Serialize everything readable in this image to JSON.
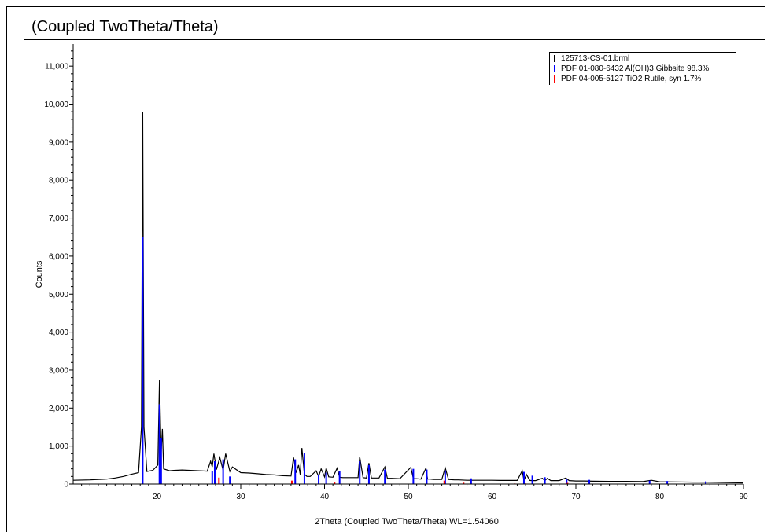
{
  "chart_data": {
    "type": "line",
    "title": "(Coupled TwoTheta/Theta)",
    "xlabel": "2Theta (Coupled TwoTheta/Theta) WL=1.54060",
    "ylabel": "Counts",
    "xlim": [
      10,
      90
    ],
    "ylim": [
      0,
      11500
    ],
    "x_ticks": [
      20,
      30,
      40,
      50,
      60,
      70,
      80,
      90
    ],
    "x_tick_labels": [
      "20",
      "30",
      "40",
      "50",
      "60",
      "70",
      "80",
      "90"
    ],
    "y_ticks": [
      0,
      1000,
      2000,
      3000,
      4000,
      5000,
      6000,
      7000,
      8000,
      9000,
      10000,
      11000
    ],
    "y_tick_labels": [
      "0",
      "1,000",
      "2,000",
      "3,000",
      "4,000",
      "5,000",
      "6,000",
      "7,000",
      "8,000",
      "9,000",
      "10,000",
      "11,000"
    ],
    "grid": false,
    "legend_position": "top-right",
    "series": [
      {
        "name": "125713-CS-01.brml",
        "color": "#000000",
        "style": "line",
        "x": [
          10,
          12,
          14,
          15,
          16,
          17,
          17.8,
          18.15,
          18.3,
          18.45,
          18.8,
          19.5,
          20.1,
          20.3,
          20.5,
          20.65,
          20.8,
          21.5,
          22,
          23,
          24,
          25,
          26,
          26.4,
          26.6,
          26.8,
          27.1,
          27.5,
          27.9,
          28.2,
          28.7,
          29,
          30,
          31,
          32,
          33,
          34,
          35,
          36,
          36.3,
          36.6,
          36.9,
          37.1,
          37.3,
          37.6,
          37.9,
          38.3,
          39,
          39.3,
          39.6,
          40,
          40.2,
          40.5,
          41,
          41.5,
          41.8,
          42.2,
          43,
          44,
          44.2,
          44.6,
          45,
          45.3,
          45.6,
          46,
          46.5,
          47.2,
          47.5,
          48,
          49,
          50.3,
          50.6,
          51,
          51.5,
          52.1,
          52.3,
          52.6,
          53,
          54,
          54.4,
          54.8,
          55.5,
          56,
          57,
          58,
          59,
          60,
          61,
          62,
          63,
          63.6,
          63.8,
          64.1,
          64.5,
          64.8,
          65.2,
          66,
          66.3,
          66.6,
          67,
          68,
          68.8,
          69.2,
          70,
          71,
          72,
          74,
          76,
          78,
          79,
          80,
          82,
          84,
          86,
          88,
          90
        ],
        "y": [
          100,
          110,
          130,
          160,
          200,
          260,
          300,
          1500,
          9800,
          1500,
          330,
          360,
          500,
          2750,
          800,
          1450,
          400,
          350,
          360,
          370,
          360,
          350,
          340,
          600,
          450,
          800,
          380,
          700,
          360,
          800,
          330,
          450,
          300,
          290,
          270,
          250,
          240,
          220,
          210,
          700,
          300,
          500,
          250,
          950,
          260,
          200,
          200,
          350,
          200,
          400,
          190,
          420,
          190,
          180,
          420,
          180,
          170,
          170,
          170,
          720,
          170,
          160,
          550,
          160,
          160,
          160,
          450,
          150,
          150,
          140,
          440,
          140,
          140,
          130,
          420,
          130,
          130,
          120,
          120,
          430,
          120,
          110,
          110,
          100,
          100,
          100,
          100,
          95,
          95,
          95,
          350,
          95,
          250,
          95,
          90,
          90,
          150,
          90,
          150,
          90,
          90,
          160,
          90,
          80,
          80,
          75,
          70,
          70,
          65,
          100,
          60,
          55,
          50,
          45,
          40,
          30
        ]
      },
      {
        "name": "PDF 01-080-6432 Al(OH)3 Gibbsite  98.3%",
        "color": "#0000ff",
        "style": "sticks",
        "x": [
          18.3,
          20.3,
          20.5,
          26.6,
          26.9,
          27.9,
          28.7,
          36.5,
          37.6,
          39.3,
          40.2,
          41.8,
          44.2,
          45.3,
          47.2,
          50.6,
          52.2,
          54.4,
          57.5,
          63.8,
          64.8,
          66.3,
          68.9,
          71.6,
          78.8,
          80.9,
          85.5
        ],
        "y": [
          6500,
          2100,
          1200,
          350,
          600,
          650,
          200,
          650,
          820,
          250,
          300,
          350,
          600,
          500,
          380,
          400,
          380,
          360,
          150,
          320,
          220,
          180,
          120,
          110,
          90,
          80,
          70
        ]
      },
      {
        "name": "PDF 04-005-5127 TiO2 Rutile, syn  1.7%",
        "color": "#ff0000",
        "style": "sticks",
        "x": [
          27.4,
          36.1,
          41.2,
          54.3,
          56.6,
          62.7,
          64.0,
          69.0
        ],
        "y": [
          170,
          90,
          40,
          90,
          35,
          15,
          15,
          30
        ]
      }
    ]
  }
}
